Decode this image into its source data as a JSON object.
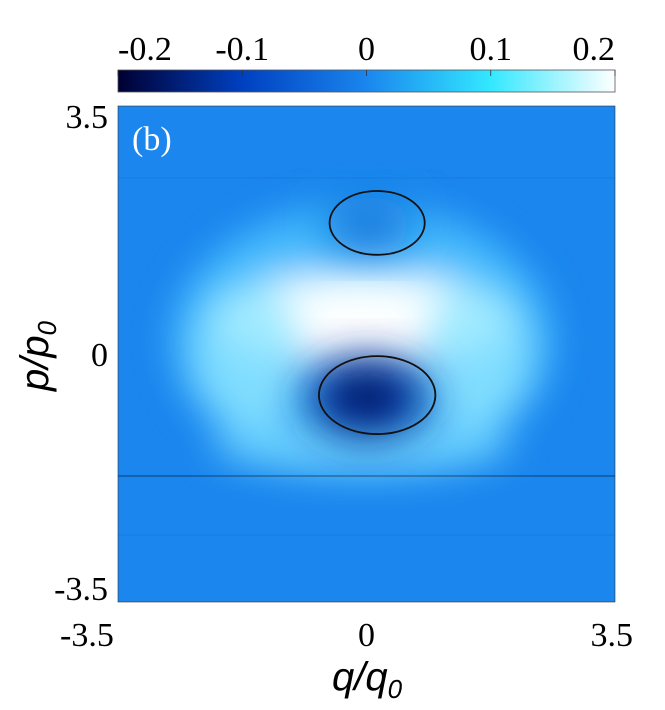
{
  "chart_data": {
    "type": "heatmap",
    "panel_label": "(b)",
    "xlabel": "q/q",
    "xlabel_sub": "0",
    "ylabel": "p/p",
    "ylabel_sub": "0",
    "xlim": [
      -3.5,
      3.5
    ],
    "ylim": [
      -3.5,
      3.5
    ],
    "x_ticks": [
      {
        "value": -3.5,
        "label": "-3.5"
      },
      {
        "value": 0,
        "label": "0"
      },
      {
        "value": 3.5,
        "label": "3.5"
      }
    ],
    "y_ticks": [
      {
        "value": 3.5,
        "label": "3.5"
      },
      {
        "value": 0,
        "label": "0"
      },
      {
        "value": -3.5,
        "label": "-3.5"
      }
    ],
    "colorbar": {
      "range": [
        -0.2,
        0.2
      ],
      "ticks": [
        {
          "value": -0.2,
          "label": "-0.2"
        },
        {
          "value": -0.1,
          "label": "-0.1"
        },
        {
          "value": 0,
          "label": "0"
        },
        {
          "value": 0.1,
          "label": "0.1"
        },
        {
          "value": 0.2,
          "label": "0.2"
        }
      ],
      "colors": [
        "#000033",
        "#0040c0",
        "#1a86ee",
        "#33e8ff",
        "#ffffff"
      ]
    },
    "background_value": -0.03,
    "features": [
      {
        "kind": "positive-ring",
        "center": [
          0,
          0.6
        ],
        "peak_value": 0.2
      },
      {
        "kind": "negative-lobe",
        "center": [
          0.2,
          -0.55
        ],
        "peak_value": -0.2
      },
      {
        "kind": "negative-lobe",
        "center": [
          0.2,
          1.85
        ],
        "peak_value": -0.05
      }
    ],
    "contours": [
      {
        "center": [
          0.15,
          1.85
        ],
        "rx": 0.67,
        "ry": 0.45
      },
      {
        "center": [
          0.15,
          -0.58
        ],
        "rx": 0.82,
        "ry": 0.55
      }
    ],
    "grid": false
  }
}
